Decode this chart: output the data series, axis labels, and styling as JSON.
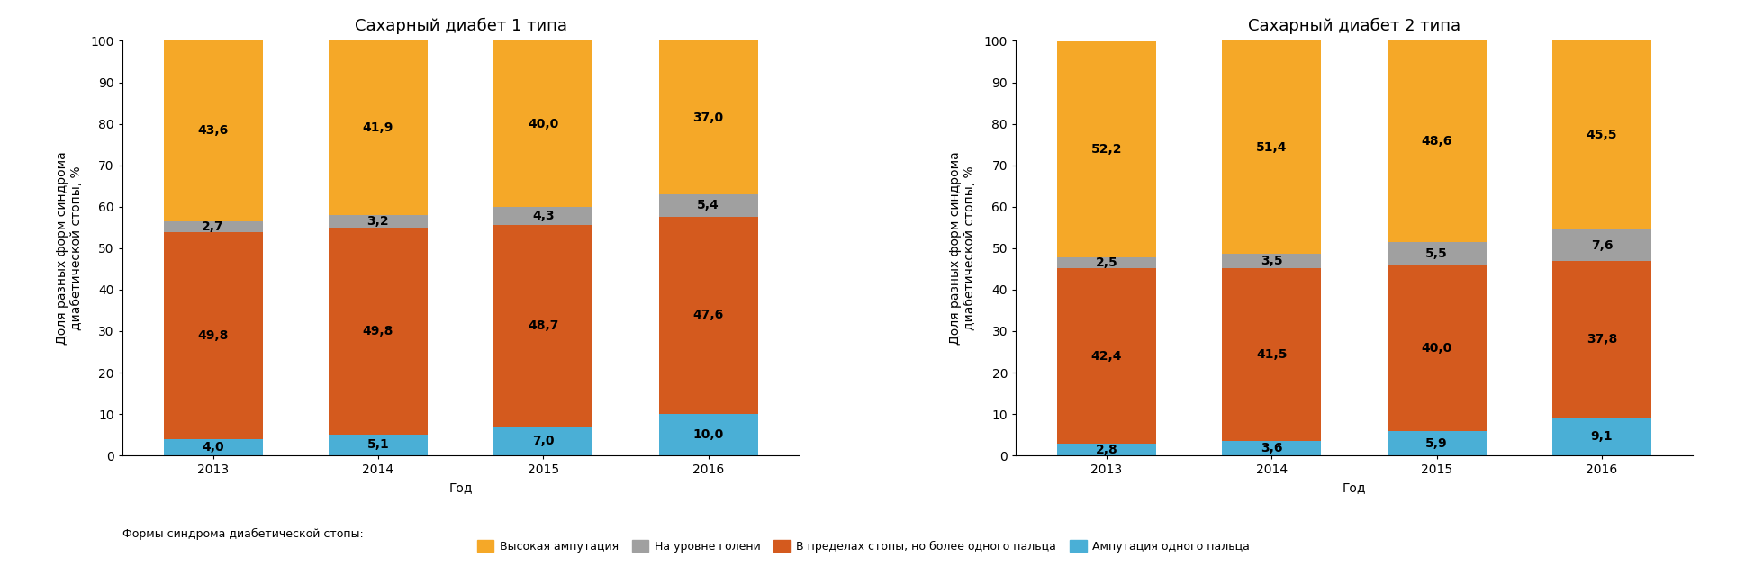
{
  "title1": "Сахарный диабет 1 типа",
  "title2": "Сахарный диабет 2 типа",
  "ylabel": "Доля разных форм синдрома\nдиабетической стопы, %",
  "xlabel": "Год",
  "years": [
    "2013",
    "2014",
    "2015",
    "2016"
  ],
  "chart1": {
    "amputation_one": [
      4.0,
      5.1,
      7.0,
      10.0
    ],
    "within_foot": [
      49.8,
      49.8,
      48.7,
      47.6
    ],
    "shin_level": [
      2.7,
      3.2,
      4.3,
      5.4
    ],
    "high_amputation": [
      43.6,
      41.9,
      40.0,
      37.0
    ]
  },
  "chart2": {
    "amputation_one": [
      2.8,
      3.6,
      5.9,
      9.1
    ],
    "within_foot": [
      42.4,
      41.5,
      40.0,
      37.8
    ],
    "shin_level": [
      2.5,
      3.5,
      5.5,
      7.6
    ],
    "high_amputation": [
      52.2,
      51.4,
      48.6,
      45.5
    ]
  },
  "colors": {
    "high_amputation": "#F5A828",
    "shin_level": "#A0A0A0",
    "within_foot": "#D45A1E",
    "amputation_one": "#4AAFD6"
  },
  "legend_labels": [
    "Высокая ампутация",
    "На уровне голени",
    "В пределах стопы, но более одного пальца",
    "Ампутация одного пальца"
  ],
  "legend_prefix": "Формы синдрома диабетической стопы:",
  "ylim": [
    0,
    100
  ],
  "yticks": [
    0,
    10,
    20,
    30,
    40,
    50,
    60,
    70,
    80,
    90,
    100
  ],
  "bar_width": 0.6,
  "text_fontsize": 10,
  "title_fontsize": 13,
  "label_fontsize": 10,
  "tick_fontsize": 10,
  "legend_fontsize": 9,
  "bg_color": "#FFFFFF"
}
